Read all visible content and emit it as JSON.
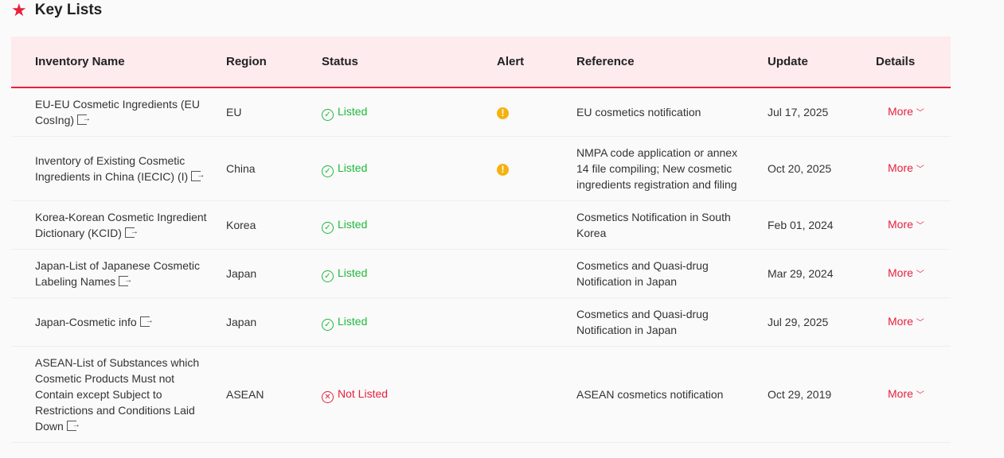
{
  "title": "Key Lists",
  "headers": [
    "Inventory Name",
    "Region",
    "Status",
    "Alert",
    "Reference",
    "Update",
    "Details"
  ],
  "rows": [
    {
      "name": "EU-EU Cosmetic Ingredients (EU CosIng)",
      "region": "EU",
      "status": "Listed",
      "alert": true,
      "reference": "EU cosmetics notification",
      "update": "Jul 17, 2025",
      "details": "More"
    },
    {
      "name": "Inventory of Existing Cosmetic Ingredients in China (IECIC) (I)",
      "region": "China",
      "status": "Listed",
      "alert": true,
      "reference": "NMPA code application or annex 14 file compiling; New cosmetic ingredients registration and filing",
      "update": "Oct 20, 2025",
      "details": "More"
    },
    {
      "name": "Korea-Korean Cosmetic Ingredient Dictionary (KCID)",
      "region": "Korea",
      "status": "Listed",
      "alert": false,
      "reference": "Cosmetics Notification in South Korea",
      "update": "Feb 01, 2024",
      "details": "More"
    },
    {
      "name": "Japan-List of Japanese Cosmetic Labeling Names",
      "region": "Japan",
      "status": "Listed",
      "alert": false,
      "reference": "Cosmetics and Quasi-drug Notification in Japan",
      "update": "Mar 29, 2024",
      "details": "More"
    },
    {
      "name": "Japan-Cosmetic info",
      "region": "Japan",
      "status": "Listed",
      "alert": false,
      "reference": "Cosmetics and Quasi-drug Notification in Japan",
      "update": "Jul 29, 2025",
      "details": "More"
    },
    {
      "name": "ASEAN-List of Substances which Cosmetic Products Must not Contain except Subject to Restrictions and Conditions Laid Down",
      "region": "ASEAN",
      "status": "Not Listed",
      "alert": false,
      "reference": "ASEAN cosmetics notification",
      "update": "Oct 29, 2019",
      "details": "More"
    }
  ],
  "colors": {
    "accent": "#e8203d",
    "listed": "#1db93a",
    "alert": "#f5b20f",
    "header_bg": "#fdebee"
  }
}
